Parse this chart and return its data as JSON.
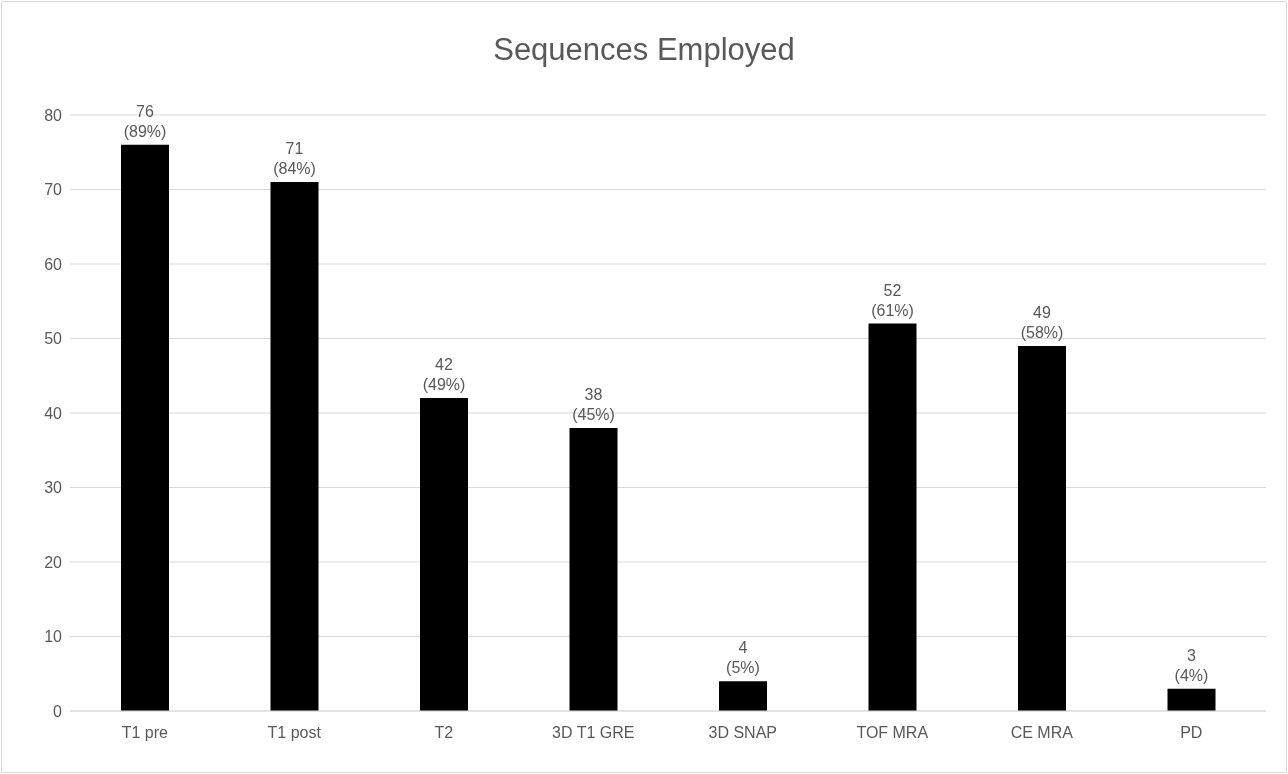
{
  "chart_data": {
    "type": "bar",
    "title": "Sequences Employed",
    "categories": [
      "T1 pre",
      "T1 post",
      "T2",
      "3D T1 GRE",
      "3D SNAP",
      "TOF MRA",
      "CE MRA",
      "PD"
    ],
    "values": [
      76,
      71,
      42,
      38,
      4,
      52,
      49,
      3
    ],
    "color": "#000000",
    "value_labels": [
      "76\n(89%)",
      "71\n(84%)",
      "42\n(49%)",
      "38\n(45%)",
      "4\n(5%)",
      "52\n(61%)",
      "49\n(58%)",
      "3\n(4%)"
    ],
    "ylim": [
      0,
      80
    ],
    "yticks": [
      0,
      10,
      20,
      30,
      40,
      50,
      60,
      70,
      80
    ],
    "grid": "y"
  }
}
